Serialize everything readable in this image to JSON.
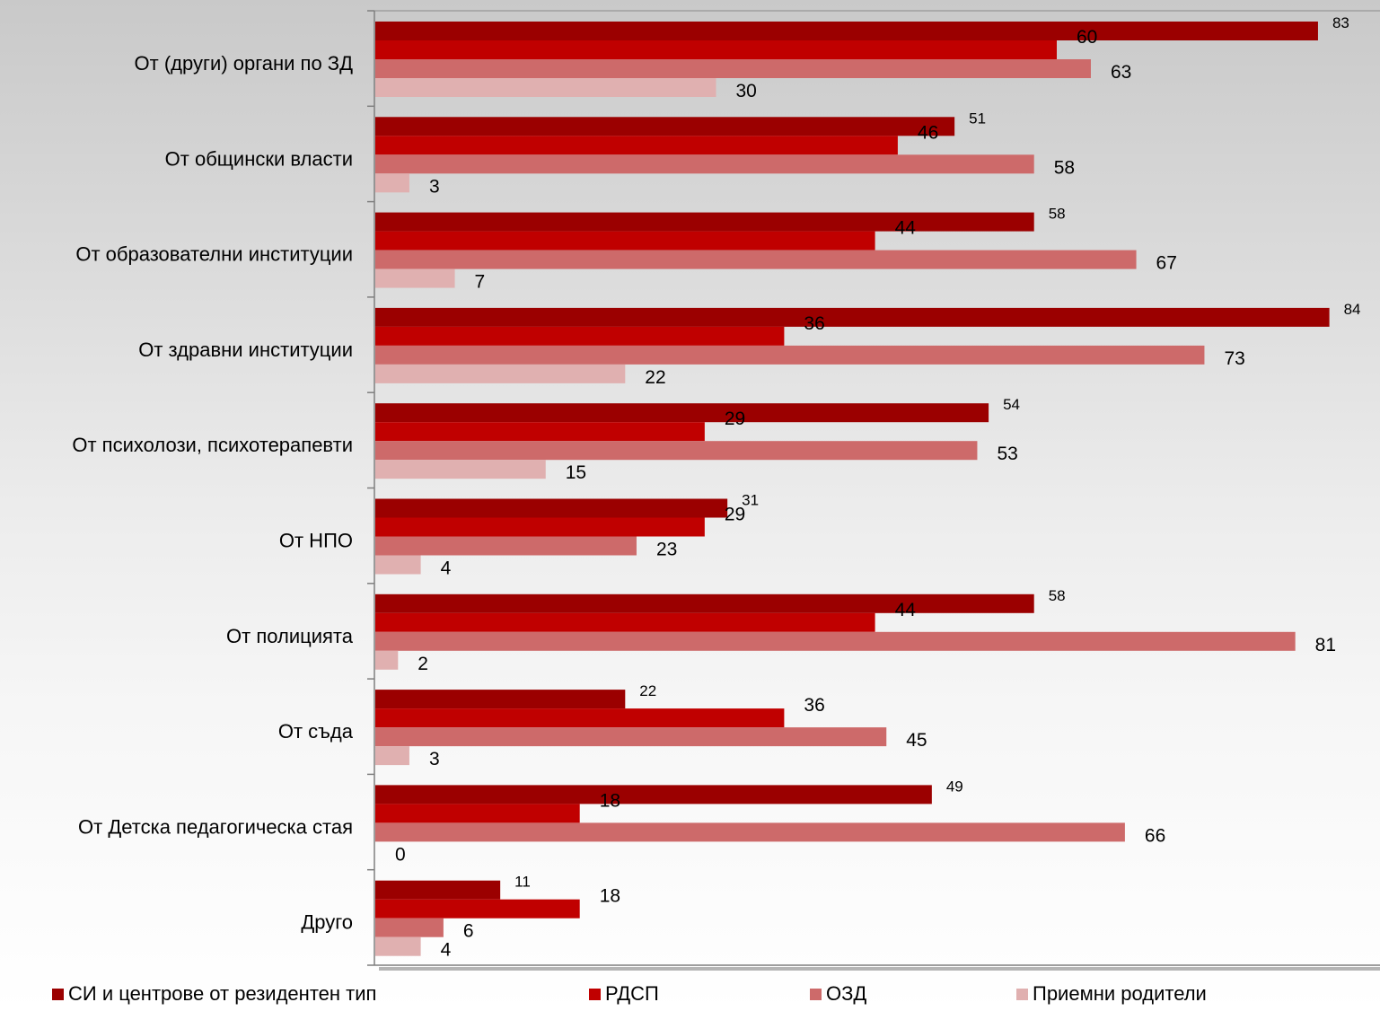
{
  "chart_data": {
    "type": "bar",
    "orientation": "horizontal",
    "categories": [
      "От (други) органи по ЗД",
      "От общински власти",
      "От образователни институции",
      "От здравни институции",
      "От психолози, психотерапевти",
      "От НПО",
      "От полицията",
      "От съда",
      "От Детска педагогическа стая",
      "Друго"
    ],
    "series": [
      {
        "name": "СИ и центрове от резидентен тип",
        "color": "#9b0000",
        "values": [
          83,
          51,
          58,
          84,
          54,
          31,
          58,
          22,
          49,
          11
        ]
      },
      {
        "name": "РДСП",
        "color": "#c00000",
        "values": [
          60,
          46,
          44,
          36,
          29,
          29,
          44,
          36,
          18,
          18
        ]
      },
      {
        "name": "ОЗД",
        "color": "#cd6a6a",
        "values": [
          63,
          58,
          67,
          73,
          53,
          23,
          81,
          45,
          66,
          6
        ]
      },
      {
        "name": "Приемни родители",
        "color": "#e0b0b0",
        "values": [
          30,
          3,
          7,
          22,
          15,
          4,
          2,
          3,
          0,
          4
        ]
      }
    ],
    "xlim": [
      0,
      85
    ],
    "grid": false,
    "legend_position": "bottom"
  }
}
